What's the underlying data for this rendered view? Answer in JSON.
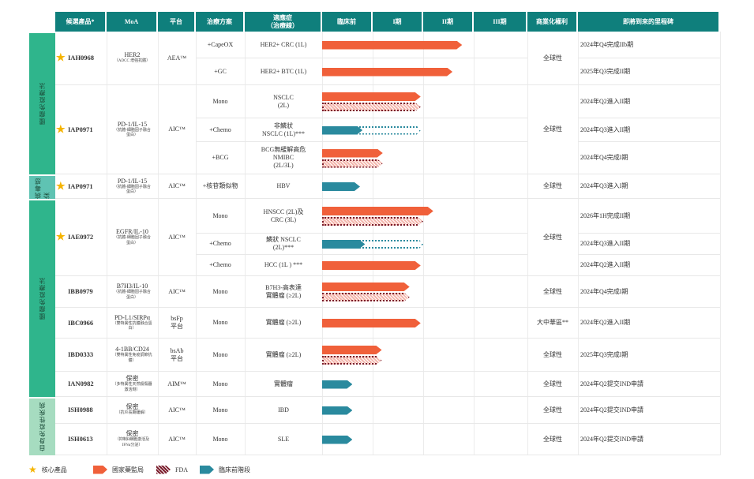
{
  "headers": [
    "候選產品*",
    "MoA",
    "平台",
    "治療方案",
    "適應症\n（治療線）",
    "臨床前",
    "I期",
    "II期",
    "III期",
    "商業化權利",
    "即將到來的里程碑"
  ],
  "colors": {
    "header": "#0f7f7c",
    "nmpa": "#f0603a",
    "fda_fill": "#f4b7ad",
    "fda_border": "#7a1d2c",
    "preclinical": "#2a8a9e",
    "star": "#f5b400",
    "cat_oncology": "#2fb58c",
    "cat_virus": "#5fc3b3",
    "cat_autoimmune": "#a6dcc0"
  },
  "categories": [
    {
      "label": "腫瘤免疫療法",
      "color_key": "cat_oncology"
    },
    {
      "label": "病毒感染",
      "color_key": "cat_virus"
    },
    {
      "label": "腫瘤免疫療法",
      "color_key": "cat_oncology"
    },
    {
      "label": "自身免疫性疾病",
      "color_key": "cat_autoimmune"
    }
  ],
  "products": [
    {
      "name": "IAH0968",
      "core": true,
      "moa": "HER2",
      "moa_note": "（ADCC 增強抗體）",
      "platform": "AEA™",
      "rights": "全球性",
      "subrows": [
        {
          "regimen": "+CapeOX",
          "indication": "HER2+ CRC (1L)",
          "milestone": "2024年Q4完成IIb期",
          "bars": [
            {
              "type": "nmpa",
              "progress": 2.77
            }
          ]
        },
        {
          "regimen": "+GC",
          "indication": "HER2+ BTC (1L)",
          "milestone": "2025年Q3完成II期",
          "bars": [
            {
              "type": "nmpa",
              "progress": 2.58
            }
          ]
        }
      ]
    },
    {
      "name": "IAP0971",
      "core": true,
      "moa": "PD-1/IL-15",
      "moa_note": "（抗體-細胞因子融合蛋白）",
      "platform": "AIC™",
      "rights": "全球性",
      "subrows": [
        {
          "regimen": "Mono",
          "indication": "NSCLC\n(2L)",
          "milestone": "2024年Q2進入II期",
          "bars": [
            {
              "type": "nmpa",
              "progress": 1.95
            },
            {
              "type": "fda",
              "progress": 1.95
            }
          ]
        },
        {
          "regimen": "+Chemo",
          "indication": "非鱗狀\nNSCLC (1L)***",
          "milestone": "2024年Q3進入II期",
          "bars": [
            {
              "type": "preclinical",
              "progress": 0.8,
              "planned_to": 1.95
            }
          ]
        },
        {
          "regimen": "+BCG",
          "indication": "BCG無緩解高危\nNMIBC\n(2L/3L)",
          "milestone": "2024年Q4完成I期",
          "bars": [
            {
              "type": "nmpa",
              "progress": 1.2
            },
            {
              "type": "fda",
              "progress": 1.2
            }
          ]
        }
      ]
    },
    {
      "name": "IAP0971",
      "core": true,
      "moa": "PD-1/IL-15",
      "moa_note": "（抗體-細胞因子融合蛋白）",
      "platform": "AIC™",
      "rights": "全球性",
      "subrows": [
        {
          "regimen": "+核苷類似物",
          "indication": "HBV",
          "milestone": "2024年Q3進入I期",
          "bars": [
            {
              "type": "preclinical",
              "progress": 0.75
            }
          ]
        }
      ]
    },
    {
      "name": "IAE0972",
      "core": true,
      "moa": "EGFR/IL-10",
      "moa_note": "（抗體-細胞因子融合蛋白）",
      "platform": "AIC™",
      "rights": "全球性",
      "subrows": [
        {
          "regimen": "Mono",
          "indication": "HNSCC (2L)及\nCRC (3L)",
          "milestone": "2026年1H完成II期",
          "bars": [
            {
              "type": "nmpa",
              "progress": 2.2
            },
            {
              "type": "fda",
              "progress": 2.0
            }
          ]
        },
        {
          "regimen": "+Chemo",
          "indication": "鱗狀 NSCLC\n(2L)***",
          "milestone": "2024年Q3進入II期",
          "bars": [
            {
              "type": "preclinical",
              "progress": 0.85,
              "planned_to": 2.0
            }
          ]
        },
        {
          "regimen": "+Chemo",
          "indication": "HCC (1L ) ***",
          "milestone": "2024年Q2進入II期",
          "bars": [
            {
              "type": "nmpa",
              "progress": 1.95
            }
          ]
        }
      ]
    },
    {
      "name": "IBB0979",
      "core": false,
      "moa": "B7H3/IL-10",
      "moa_note": "（抗體-細胞因子融合蛋白）",
      "platform": "AIC™",
      "rights": "全球性",
      "subrows": [
        {
          "regimen": "Mono",
          "indication": "B7H3-高表達\n實體瘤 (≥2L)",
          "milestone": "2024年Q4完成I期",
          "bars": [
            {
              "type": "nmpa",
              "progress": 1.73
            },
            {
              "type": "fda",
              "progress": 1.73
            }
          ]
        }
      ]
    },
    {
      "name": "IBC0966",
      "core": false,
      "moa": "PD-L1/SIRPα",
      "moa_note": "（雙特異性抗體融合蛋白）",
      "platform": "bsFp\n平台",
      "rights": "大中華區**",
      "subrows": [
        {
          "regimen": "Mono",
          "indication": "實體瘤 (≥2L)",
          "milestone": "2024年Q2進入II期",
          "bars": [
            {
              "type": "nmpa",
              "progress": 1.95
            }
          ]
        }
      ]
    },
    {
      "name": "IBD0333",
      "core": false,
      "moa": "4-1BB/CD24",
      "moa_note": "（雙特異性免疫調節抗體）",
      "platform": "bsAb\n平台",
      "rights": "全球性",
      "subrows": [
        {
          "regimen": "Mono",
          "indication": "實體瘤 (≥2L)",
          "milestone": "2025年Q3完成I期",
          "bars": [
            {
              "type": "nmpa",
              "progress": 1.18
            },
            {
              "type": "fda",
              "progress": 1.18
            }
          ]
        }
      ]
    },
    {
      "name": "IAN0982",
      "core": false,
      "moa": "保密",
      "moa_note": "（多特異性天然殺傷器激活劑）",
      "platform": "AIM™",
      "rights": "全球性",
      "subrows": [
        {
          "regimen": "Mono",
          "indication": "實體瘤",
          "milestone": "2024年Q2提交IND申請",
          "bars": [
            {
              "type": "preclinical",
              "progress": 0.6
            }
          ]
        }
      ]
    },
    {
      "name": "ISH0988",
      "core": false,
      "moa": "保密",
      "moa_note": "（抗炎長期緩解）",
      "platform": "AIC™",
      "rights": "全球性",
      "subrows": [
        {
          "regimen": "Mono",
          "indication": "IBD",
          "milestone": "2024年Q2提交IND申請",
          "bars": [
            {
              "type": "preclinical",
              "progress": 0.6
            }
          ]
        }
      ]
    },
    {
      "name": "ISH0613",
      "core": false,
      "moa": "保密",
      "moa_note": "（抑制B細胞激活及IFNα分泌）",
      "platform": "AIC™",
      "rights": "全球性",
      "subrows": [
        {
          "regimen": "Mono",
          "indication": "SLE",
          "milestone": "2024年Q2提交IND申請",
          "bars": [
            {
              "type": "preclinical",
              "progress": 0.6
            }
          ]
        }
      ]
    }
  ],
  "legend": [
    {
      "icon": "star-icon",
      "label": "核心產品"
    },
    {
      "icon": "nmpa-arrow-icon",
      "label": "國家藥監局"
    },
    {
      "icon": "fda-arrow-icon",
      "label": "FDA"
    },
    {
      "icon": "preclinical-arrow-icon",
      "label": "臨床前階段"
    }
  ]
}
